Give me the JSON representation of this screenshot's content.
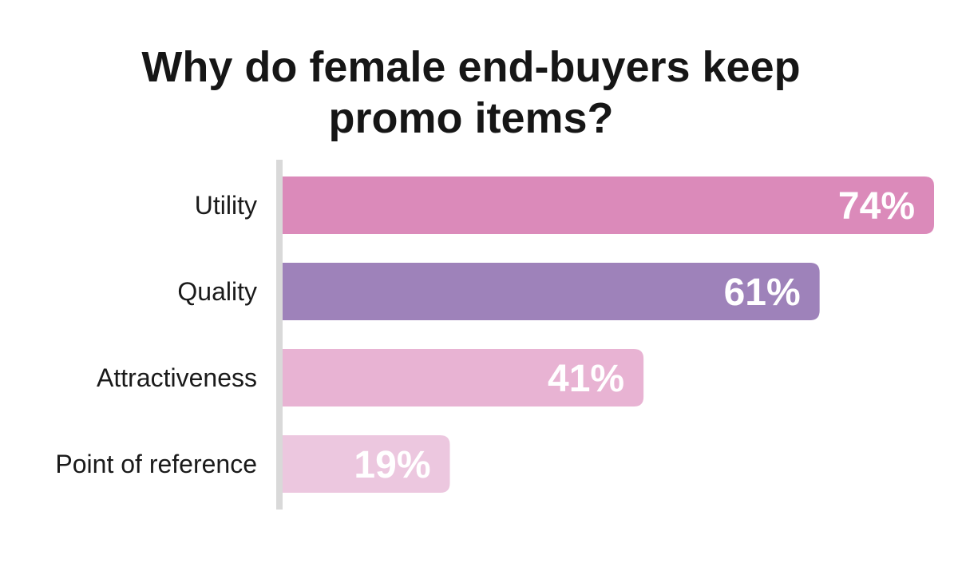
{
  "chart_data": {
    "type": "bar",
    "orientation": "horizontal",
    "title_lines": [
      "Why do female end-buyers keep",
      "promo items?"
    ],
    "categories": [
      "Utility",
      "Quality",
      "Attractiveness",
      "Point of reference"
    ],
    "values": [
      74,
      61,
      41,
      19
    ],
    "value_labels": [
      "74%",
      "61%",
      "41%",
      "19%"
    ],
    "colors": [
      "#DB8ABA",
      "#9E82BA",
      "#E8B3D3",
      "#ECC7DF"
    ],
    "axis_color": "#D9D9D9",
    "xlim": [
      0,
      74
    ],
    "grid": false,
    "legend": "none"
  }
}
